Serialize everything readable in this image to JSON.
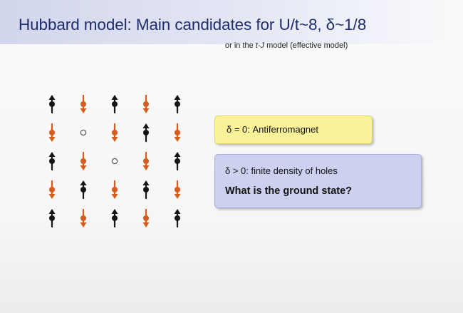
{
  "slide": {
    "title": "Hubbard model: Main candidates for U/t~8, δ~1/8",
    "subtitle_prefix": "or in the ",
    "subtitle_model": "t-J",
    "subtitle_suffix": " model (effective model)"
  },
  "lattice": {
    "rows": [
      [
        "up",
        "down",
        "up",
        "down",
        "up"
      ],
      [
        "down",
        "hole",
        "down",
        "up",
        "down"
      ],
      [
        "up",
        "down",
        "hole",
        "down",
        "up"
      ],
      [
        "down",
        "up",
        "down",
        "up",
        "down"
      ],
      [
        "up",
        "down",
        "up",
        "down",
        "up"
      ]
    ],
    "colors": {
      "up": "#151515",
      "down": "#d75a1e",
      "hole": "#555555"
    }
  },
  "boxes": {
    "afm_text": "δ = 0:  Antiferromagnet",
    "holes_text": "δ > 0:  finite density of holes",
    "question_text": "What is the ground state?",
    "afm_color": "#fbf29a",
    "holes_color": "#cdd1ef"
  }
}
